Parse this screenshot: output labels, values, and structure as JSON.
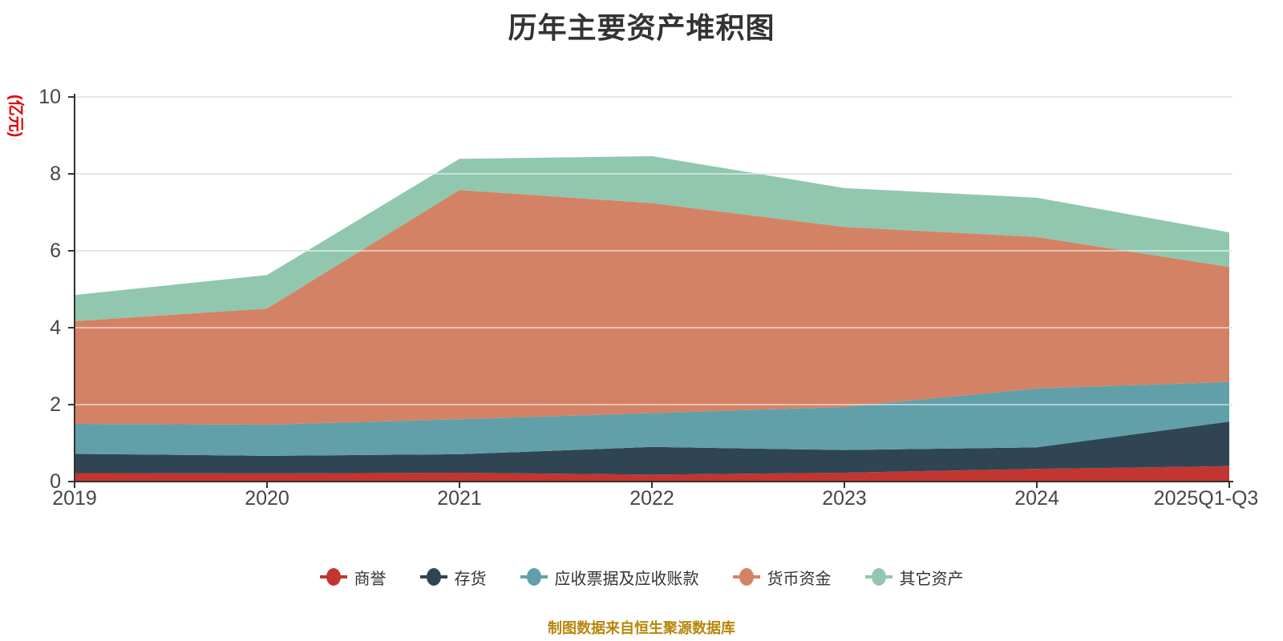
{
  "title": "历年主要资产堆积图",
  "footer": "制图数据来自恒生聚源数据库",
  "colors": {
    "axis_name_red": "#e60000",
    "footer_gold": "#b8860b",
    "axis_line": "#333333",
    "gridline": "#cccccc",
    "tick_label": "#464646"
  },
  "chart_data": {
    "type": "area",
    "stacked": true,
    "title": "历年主要资产堆积图",
    "y_axis_name": "(亿元)",
    "grid": true,
    "legend_position": "bottom",
    "ylim": [
      0,
      10
    ],
    "yticks": [
      "0",
      "2",
      "4",
      "6",
      "8",
      "10"
    ],
    "categories": [
      "2019",
      "2020",
      "2021",
      "2022",
      "2023",
      "2024",
      "2025Q1-Q3"
    ],
    "series": [
      {
        "name": "商誉",
        "color": "#c23531",
        "values": [
          0.22,
          0.21,
          0.23,
          0.18,
          0.23,
          0.33,
          0.4
        ]
      },
      {
        "name": "存货",
        "color": "#2f4554",
        "values": [
          0.5,
          0.46,
          0.48,
          0.72,
          0.59,
          0.56,
          1.16
        ]
      },
      {
        "name": "应收票据及应收账款",
        "color": "#61a0a8",
        "values": [
          0.78,
          0.81,
          0.91,
          0.88,
          1.12,
          1.53,
          1.03
        ]
      },
      {
        "name": "货币资金",
        "color": "#d48265",
        "values": [
          2.67,
          3.02,
          5.96,
          5.46,
          4.68,
          3.94,
          2.99
        ]
      },
      {
        "name": "其它资产",
        "color": "#91c7ae",
        "values": [
          0.68,
          0.87,
          0.81,
          1.22,
          1.01,
          1.02,
          0.9
        ]
      }
    ],
    "totals": [
      4.85,
      5.37,
      8.39,
      8.46,
      7.63,
      7.38,
      6.48
    ]
  }
}
